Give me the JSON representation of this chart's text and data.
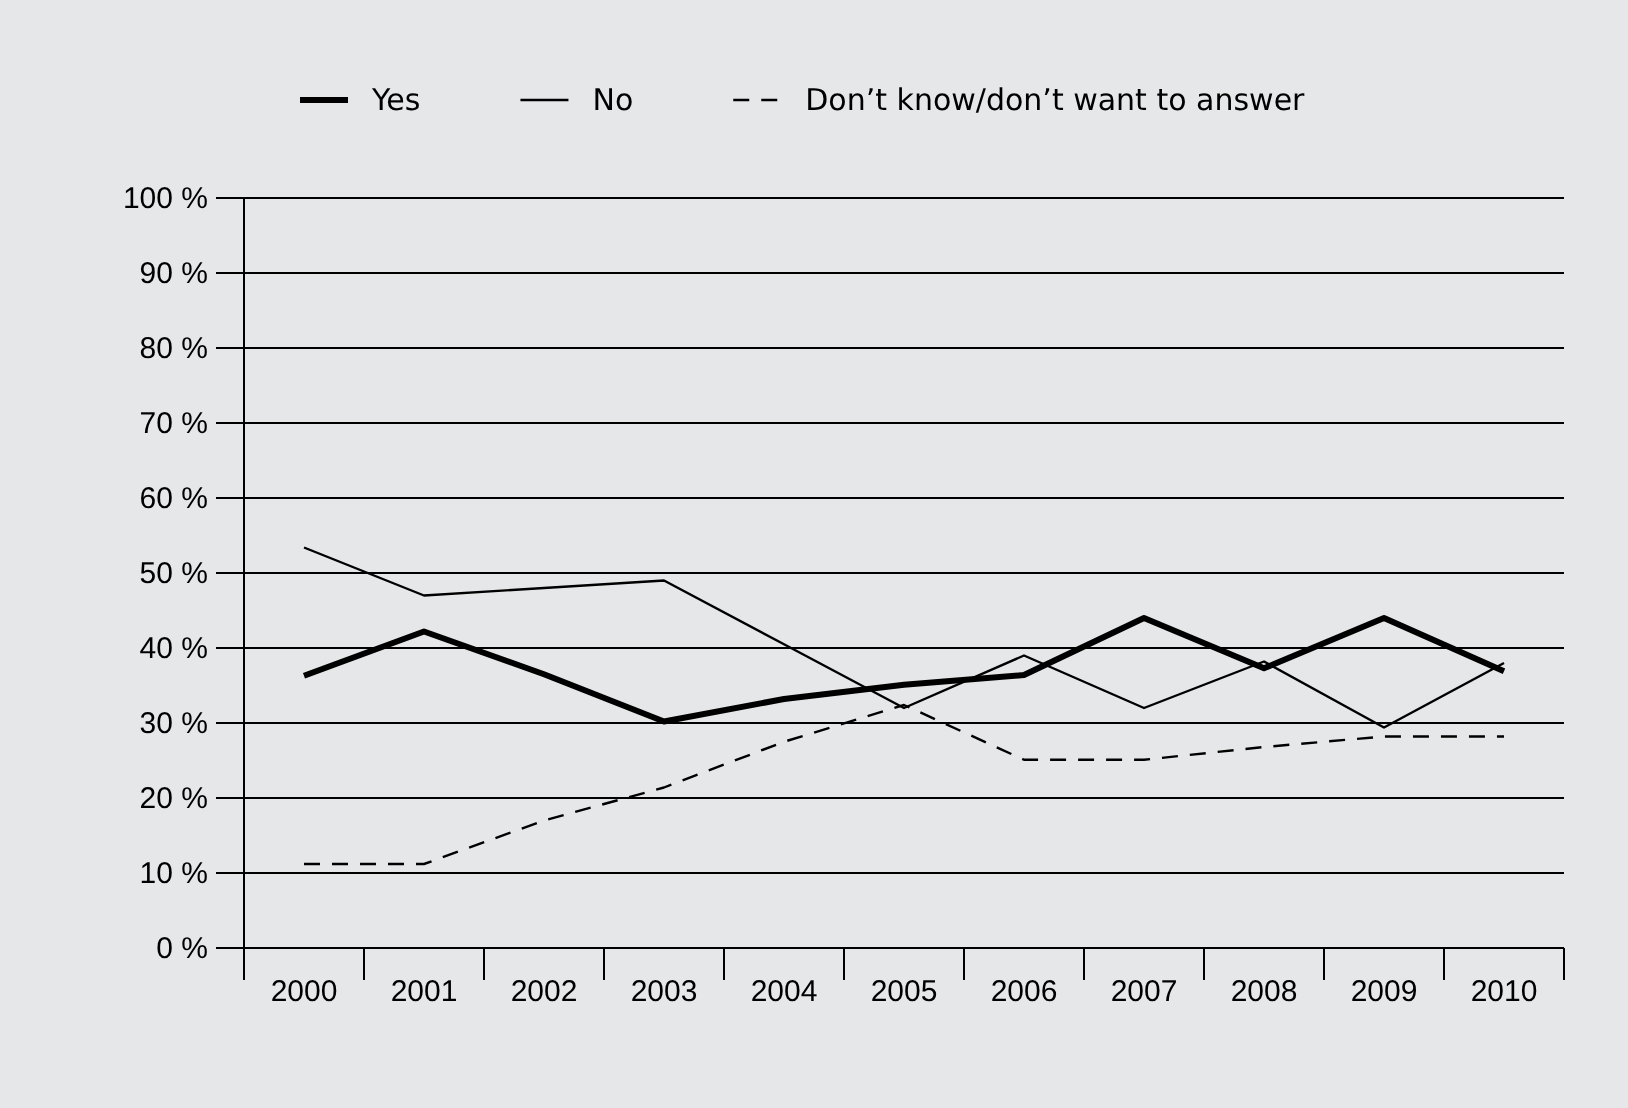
{
  "chart_data": {
    "type": "line",
    "categories": [
      "2000",
      "2001",
      "2002",
      "2003",
      "2004",
      "2005",
      "2006",
      "2007",
      "2008",
      "2009",
      "2010"
    ],
    "series": [
      {
        "name": "Yes",
        "color": "#000000",
        "line_style": "solid",
        "values": [
          36.3,
          42.2,
          36.5,
          30.2,
          33.2,
          35.1,
          36.4,
          44,
          37.3,
          44,
          36.9
        ]
      },
      {
        "name": "No",
        "color": "#000000",
        "line_style": "solid",
        "values": [
          53.4,
          47,
          48,
          49,
          40.5,
          32,
          39,
          32,
          38.2,
          29.4,
          38
        ]
      },
      {
        "name": "Don’t know/don’t want to answer",
        "color": "#000000",
        "line_style": "dashed",
        "values": [
          11.2,
          11.2,
          17,
          21.4,
          27.5,
          32.4,
          25.1,
          25.1,
          26.8,
          28.2,
          28.2
        ]
      }
    ],
    "ylim": [
      0,
      100
    ],
    "yticks": [
      {
        "value": 0,
        "label": "0 %"
      },
      {
        "value": 10,
        "label": "10 %"
      },
      {
        "value": 20,
        "label": "20 %"
      },
      {
        "value": 30,
        "label": "30 %"
      },
      {
        "value": 40,
        "label": "40 %"
      },
      {
        "value": 50,
        "label": "50 %"
      },
      {
        "value": 60,
        "label": "60 %"
      },
      {
        "value": 70,
        "label": "70 %"
      },
      {
        "value": 80,
        "label": "80 %"
      },
      {
        "value": 90,
        "label": "90 %"
      },
      {
        "value": 100,
        "label": "100 %"
      }
    ],
    "grid": "y",
    "legend": "top",
    "marker": "none"
  }
}
